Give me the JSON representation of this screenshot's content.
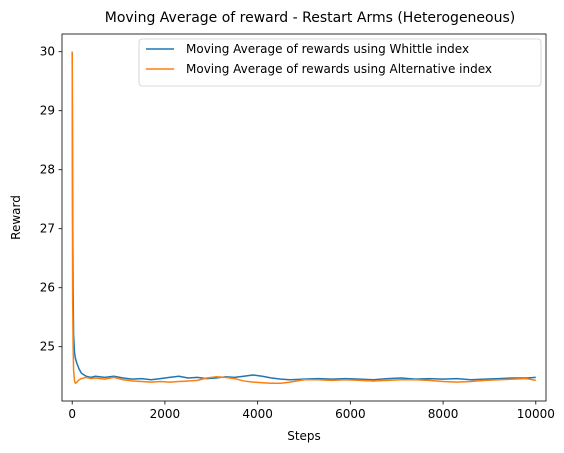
{
  "chart_data": {
    "type": "line",
    "title": "Moving Average of reward - Restart Arms (Heterogeneous)",
    "xlabel": "Steps",
    "ylabel": "Reward",
    "xlim": [
      -220,
      10220
    ],
    "ylim": [
      24.08,
      30.3
    ],
    "xticks": [
      0,
      2000,
      4000,
      6000,
      8000,
      10000
    ],
    "yticks": [
      25,
      26,
      27,
      28,
      29,
      30
    ],
    "xtick_labels": [
      "0",
      "2000",
      "4000",
      "6000",
      "8000",
      "10000"
    ],
    "ytick_labels": [
      "25",
      "26",
      "27",
      "28",
      "29",
      "30"
    ],
    "grid": false,
    "legend_position": "top-right",
    "series": [
      {
        "name": "Moving Average of rewards using Whittle index",
        "color": "#1f77b4",
        "x": [
          0,
          5,
          10,
          20,
          30,
          50,
          70,
          100,
          150,
          200,
          300,
          400,
          500,
          700,
          900,
          1100,
          1300,
          1500,
          1700,
          1900,
          2100,
          2300,
          2500,
          2700,
          2900,
          3100,
          3300,
          3500,
          3700,
          3900,
          4100,
          4300,
          4500,
          4700,
          5000,
          5300,
          5600,
          5900,
          6200,
          6500,
          6800,
          7100,
          7400,
          7700,
          8000,
          8300,
          8600,
          8900,
          9200,
          9500,
          9800,
          10000
        ],
        "values": [
          30.0,
          28.8,
          27.2,
          25.9,
          25.2,
          24.9,
          24.8,
          24.72,
          24.62,
          24.55,
          24.5,
          24.48,
          24.5,
          24.48,
          24.5,
          24.47,
          24.45,
          24.46,
          24.44,
          24.46,
          24.48,
          24.5,
          24.47,
          24.48,
          24.46,
          24.47,
          24.49,
          24.48,
          24.5,
          24.52,
          24.5,
          24.47,
          24.45,
          24.44,
          24.45,
          24.46,
          24.45,
          24.46,
          24.45,
          24.44,
          24.46,
          24.47,
          24.45,
          24.46,
          24.45,
          24.46,
          24.44,
          24.45,
          24.46,
          24.47,
          24.47,
          24.48
        ]
      },
      {
        "name": "Moving Average of rewards using Alternative index",
        "color": "#ff7f0e",
        "x": [
          0,
          5,
          10,
          20,
          30,
          50,
          70,
          100,
          150,
          200,
          300,
          400,
          500,
          700,
          900,
          1100,
          1300,
          1500,
          1700,
          1900,
          2100,
          2300,
          2500,
          2700,
          2900,
          3100,
          3300,
          3500,
          3700,
          3900,
          4100,
          4300,
          4500,
          4700,
          5000,
          5300,
          5600,
          5900,
          6200,
          6500,
          6800,
          7100,
          7400,
          7700,
          8000,
          8300,
          8600,
          8900,
          9200,
          9500,
          9800,
          10000
        ],
        "values": [
          30.0,
          27.5,
          25.8,
          25.0,
          24.6,
          24.42,
          24.38,
          24.4,
          24.44,
          24.46,
          24.48,
          24.46,
          24.47,
          24.45,
          24.48,
          24.44,
          24.42,
          24.41,
          24.4,
          24.41,
          24.4,
          24.41,
          24.42,
          24.43,
          24.47,
          24.49,
          24.48,
          24.46,
          24.42,
          24.4,
          24.39,
          24.38,
          24.38,
          24.4,
          24.44,
          24.44,
          24.43,
          24.44,
          24.43,
          24.42,
          24.43,
          24.44,
          24.44,
          24.43,
          24.41,
          24.4,
          24.41,
          24.43,
          24.44,
          24.45,
          24.46,
          24.43
        ]
      }
    ]
  }
}
